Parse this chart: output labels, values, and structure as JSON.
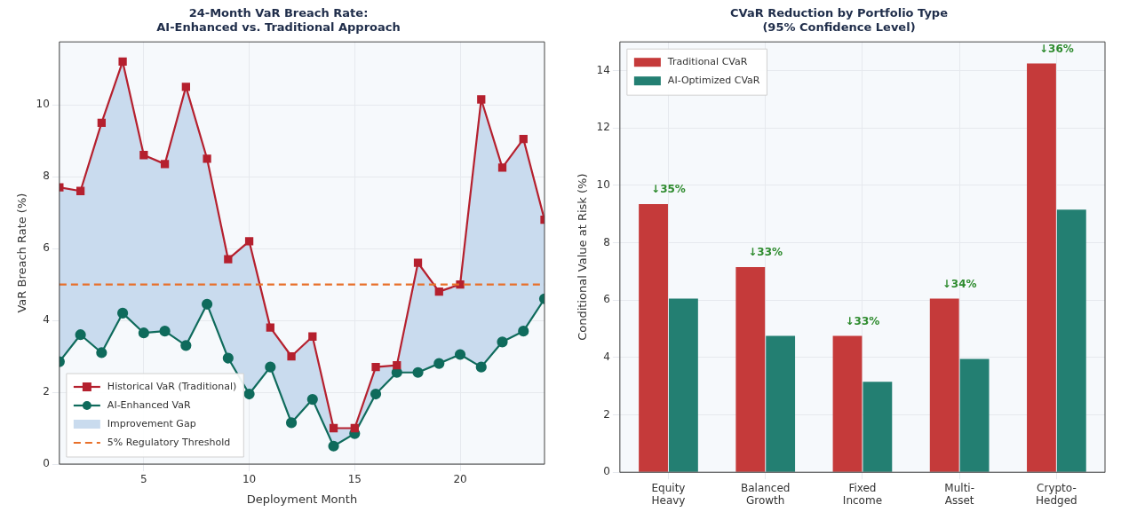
{
  "chart_data": [
    {
      "type": "line",
      "title": "24-Month VaR Breach Rate:\nAI-Enhanced vs. Traditional Approach",
      "xlabel": "Deployment Month",
      "ylabel": "VaR Breach Rate (%)",
      "x": [
        1,
        2,
        3,
        4,
        5,
        6,
        7,
        8,
        9,
        10,
        11,
        12,
        13,
        14,
        15,
        16,
        17,
        18,
        19,
        20,
        21,
        22,
        23,
        24
      ],
      "series": [
        {
          "name": "Improvement Gap",
          "type": "area",
          "color": "#c9dbee",
          "values": [
            null,
            null,
            null,
            null,
            null,
            null,
            null,
            null,
            null,
            null,
            null,
            null,
            null,
            null,
            null,
            null,
            null,
            null,
            null,
            null,
            null,
            null,
            null,
            null
          ],
          "lower": [
            2.85,
            3.6,
            3.1,
            4.2,
            3.65,
            3.7,
            3.3,
            4.45,
            2.95,
            1.95,
            2.7,
            1.15,
            1.8,
            0.5,
            0.85,
            1.95,
            2.55,
            2.55,
            2.8,
            3.05,
            2.7,
            3.4,
            3.7,
            4.6
          ],
          "upper": [
            7.7,
            7.6,
            9.5,
            11.2,
            8.6,
            8.35,
            10.5,
            8.5,
            5.7,
            6.2,
            3.8,
            3.0,
            3.55,
            1.0,
            1.0,
            2.7,
            2.75,
            5.6,
            4.8,
            5.0,
            10.15,
            8.25,
            9.05,
            6.8
          ]
        },
        {
          "name": "Historical VaR (Traditional)",
          "color": "#b5202e",
          "marker": "square",
          "values": [
            7.7,
            7.6,
            9.5,
            11.2,
            8.6,
            8.35,
            10.5,
            8.5,
            5.7,
            6.2,
            3.8,
            3.0,
            3.55,
            1.0,
            1.0,
            2.7,
            2.75,
            5.6,
            4.8,
            5.0,
            10.15,
            8.25,
            9.05,
            6.8
          ]
        },
        {
          "name": "AI-Enhanced VaR",
          "color": "#0f6b5c",
          "marker": "circle",
          "values": [
            2.85,
            3.6,
            3.1,
            4.2,
            3.65,
            3.7,
            3.3,
            4.45,
            2.95,
            1.95,
            2.7,
            1.15,
            1.8,
            0.5,
            0.85,
            1.95,
            2.55,
            2.55,
            2.8,
            3.05,
            2.7,
            3.4,
            3.7,
            4.6
          ]
        }
      ],
      "ref_lines": [
        {
          "axis": "y",
          "value": 5,
          "label": "5% Regulatory Threshold",
          "color": "#e8702a",
          "line_style": "dashed"
        }
      ],
      "xlim": [
        1,
        24
      ],
      "xticks": [
        5,
        10,
        15,
        20
      ],
      "ylim": [
        0,
        11.75
      ],
      "yticks": [
        0,
        2,
        4,
        6,
        8,
        10
      ],
      "grid": true,
      "legend": "bottom left"
    },
    {
      "type": "bar",
      "title": "CVaR Reduction by Portfolio Type\n(95% Confidence Level)",
      "ylabel": "Conditional Value at Risk (%)",
      "categories": [
        "Equity\nHeavy",
        "Balanced\nGrowth",
        "Fixed\nIncome",
        "Multi-\nAsset",
        "Crypto-\nHedged"
      ],
      "series": [
        {
          "name": "Traditional CVaR",
          "color": "#c53a3a",
          "values": [
            9.35,
            7.15,
            4.75,
            6.05,
            14.25
          ]
        },
        {
          "name": "AI-Optimized CVaR",
          "color": "#237f72",
          "values": [
            6.05,
            4.75,
            3.15,
            3.95,
            9.15
          ]
        }
      ],
      "annotations": [
        {
          "text": "↓35%",
          "x": "Equity\nHeavy",
          "y": 9.35
        },
        {
          "text": "↓33%",
          "x": "Balanced\nGrowth",
          "y": 7.15
        },
        {
          "text": "↓33%",
          "x": "Fixed\nIncome",
          "y": 4.75
        },
        {
          "text": "↓34%",
          "x": "Multi-\nAsset",
          "y": 6.05
        },
        {
          "text": "↓36%",
          "x": "Crypto-\nHedged",
          "y": 14.25
        }
      ],
      "ylim": [
        0,
        15
      ],
      "yticks": [
        0,
        2,
        4,
        6,
        8,
        10,
        12,
        14
      ],
      "grid": true,
      "legend": "top left"
    }
  ]
}
